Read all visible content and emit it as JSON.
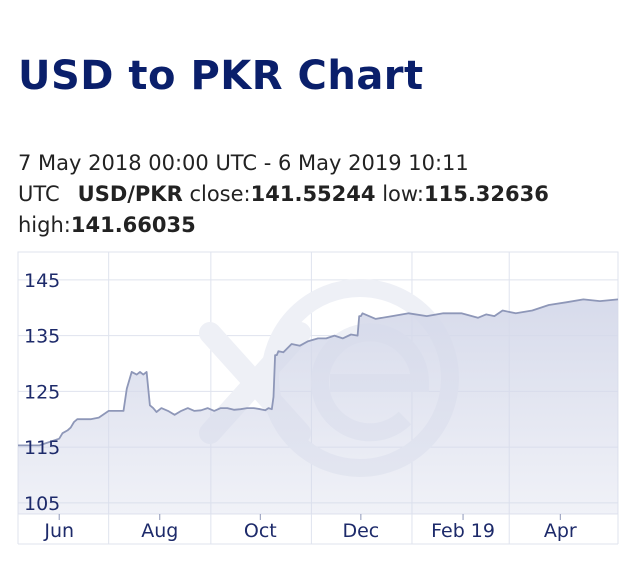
{
  "page": {
    "title": "USD to PKR Chart",
    "range_text": "7 May 2018 00:00 UTC - 6 May 2019 10:11",
    "tz": "UTC",
    "pair": "USD/PKR",
    "close_label": "close:",
    "close_value": "141.55244",
    "low_label": "low:",
    "low_value": "115.32636",
    "high_label": "high:",
    "high_value": "141.66035"
  },
  "chart_data": {
    "type": "area",
    "title": "",
    "xlabel": "",
    "ylabel": "",
    "y_ticks": [
      "145",
      "135",
      "125",
      "115",
      "105"
    ],
    "x_ticks": [
      "Jun",
      "Aug",
      "Oct",
      "Dec",
      "Feb 19",
      "Apr"
    ],
    "ylim": [
      103,
      150
    ],
    "xlim": [
      "2018-05-07",
      "2019-05-06"
    ],
    "grid": true,
    "colors": {
      "line": "#8e97b8",
      "fill": "#d5d9ea",
      "tick_text": "#1d2a6a",
      "grid": "#dfe3ee",
      "watermark": "#eef0f6"
    },
    "watermark_icon": "xe-logo-icon",
    "series": [
      {
        "x": [
          "2018-05-07",
          "2018-05-20",
          "2018-06-01",
          "2018-06-03",
          "2018-06-06",
          "2018-06-08",
          "2018-06-10",
          "2018-06-12",
          "2018-06-15",
          "2018-06-20",
          "2018-06-25",
          "2018-07-01",
          "2018-07-05",
          "2018-07-08",
          "2018-07-10",
          "2018-07-12",
          "2018-07-15",
          "2018-07-18",
          "2018-07-20",
          "2018-07-22",
          "2018-07-24",
          "2018-07-26",
          "2018-07-28",
          "2018-07-30",
          "2018-08-02",
          "2018-08-06",
          "2018-08-10",
          "2018-08-14",
          "2018-08-18",
          "2018-08-22",
          "2018-08-26",
          "2018-08-30",
          "2018-09-03",
          "2018-09-07",
          "2018-09-11",
          "2018-09-15",
          "2018-09-19",
          "2018-09-23",
          "2018-09-27",
          "2018-10-01",
          "2018-10-04",
          "2018-10-06",
          "2018-10-08",
          "2018-10-09",
          "2018-10-10",
          "2018-10-11",
          "2018-10-12",
          "2018-10-15",
          "2018-10-20",
          "2018-10-25",
          "2018-10-30",
          "2018-11-05",
          "2018-11-10",
          "2018-11-15",
          "2018-11-20",
          "2018-11-25",
          "2018-11-29",
          "2018-11-30",
          "2018-12-01",
          "2018-12-02",
          "2018-12-10",
          "2018-12-20",
          "2018-12-30",
          "2019-01-10",
          "2019-01-20",
          "2019-01-31",
          "2019-02-10",
          "2019-02-15",
          "2019-02-20",
          "2019-02-25",
          "2019-03-05",
          "2019-03-15",
          "2019-03-25",
          "2019-04-05",
          "2019-04-15",
          "2019-04-25",
          "2019-05-06"
        ],
        "y": [
          115.3,
          115.3,
          116.5,
          117.5,
          118,
          118.5,
          119.5,
          120,
          120,
          120,
          120.3,
          121.5,
          121.5,
          121.5,
          121.5,
          125.5,
          128.5,
          128,
          128.5,
          128,
          128.5,
          122.5,
          122,
          121.3,
          122,
          121.5,
          120.8,
          121.5,
          122,
          121.5,
          121.6,
          122,
          121.5,
          122,
          122,
          121.7,
          121.8,
          122,
          122,
          121.8,
          121.6,
          122,
          121.8,
          124,
          131.5,
          131.5,
          132.2,
          132,
          133.5,
          133.2,
          134,
          134.5,
          134.5,
          135,
          134.5,
          135.2,
          135,
          138.5,
          138.5,
          139,
          138,
          138.5,
          139,
          138.5,
          139,
          139,
          138.2,
          138.8,
          138.5,
          139.5,
          139,
          139.5,
          140.5,
          141,
          141.5,
          141.2,
          141.5
        ]
      }
    ]
  }
}
